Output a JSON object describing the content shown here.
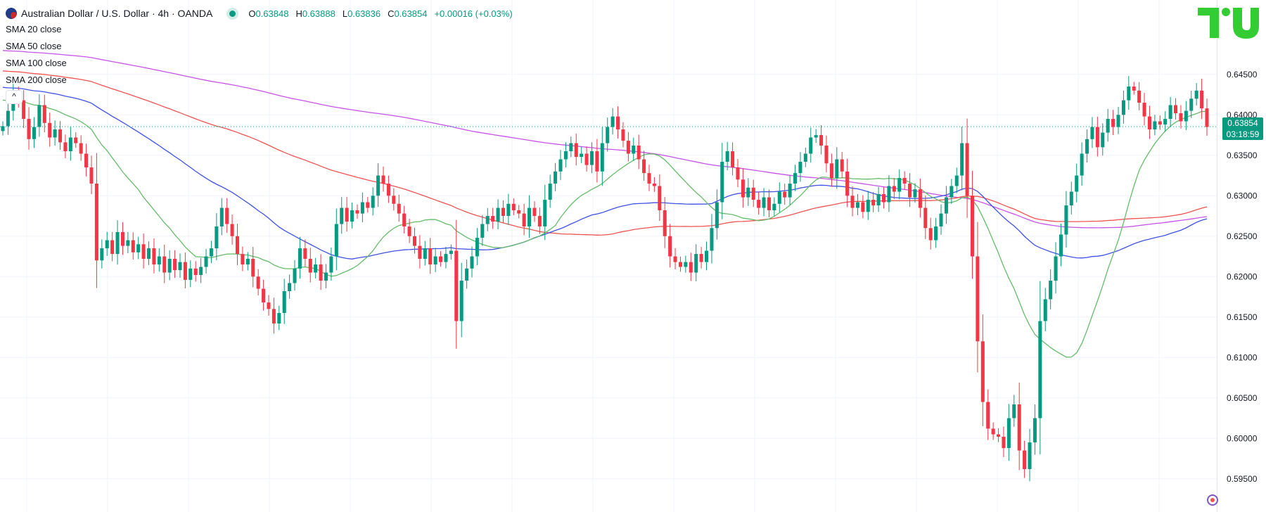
{
  "header": {
    "symbol_title": "Australian Dollar / U.S. Dollar · 4h · OANDA",
    "open_key": "O",
    "open_value": "0.63848",
    "high_key": "H",
    "high_value": "0.63888",
    "low_key": "L",
    "low_value": "0.63836",
    "close_key": "C",
    "close_value": "0.63854",
    "change": "+0.00016 (+0.03%)"
  },
  "legend": {
    "items": [
      "SMA 20 close",
      "SMA 50 close",
      "SMA 100 close",
      "SMA 200 close"
    ],
    "collapse_glyph": "^"
  },
  "price_tag": {
    "price": "0.63854",
    "countdown": "03:18:59"
  },
  "colors": {
    "up": "#089981",
    "down": "#f23645",
    "sma20": "#66bb6a",
    "sma50": "#3f51e6",
    "sma100": "#ef5350",
    "sma200": "#c653e8",
    "grid": "#f0f3fa",
    "logo": "#33cc33"
  },
  "chart_data": {
    "type": "candlestick",
    "timeframe": "4h",
    "ylim": [
      0.59,
      0.65
    ],
    "y_ticks": [
      "0.64500",
      "0.64000",
      "0.63500",
      "0.63000",
      "0.62500",
      "0.62000",
      "0.61500",
      "0.61000",
      "0.60500",
      "0.60000",
      "0.59500"
    ],
    "last_price": 0.63854,
    "grid": true,
    "closes": [
      0.6386,
      0.6405,
      0.6425,
      0.6418,
      0.6395,
      0.637,
      0.6385,
      0.6412,
      0.639,
      0.6372,
      0.6382,
      0.6366,
      0.6355,
      0.6372,
      0.6365,
      0.6352,
      0.6335,
      0.6315,
      0.622,
      0.6235,
      0.6245,
      0.6228,
      0.6255,
      0.6238,
      0.6245,
      0.623,
      0.624,
      0.6222,
      0.6235,
      0.6215,
      0.6225,
      0.6205,
      0.6222,
      0.6208,
      0.6218,
      0.6196,
      0.621,
      0.6202,
      0.6212,
      0.6225,
      0.6235,
      0.6262,
      0.6285,
      0.6265,
      0.625,
      0.6228,
      0.6215,
      0.6222,
      0.62,
      0.6185,
      0.6168,
      0.616,
      0.6142,
      0.6155,
      0.6182,
      0.6192,
      0.621,
      0.6235,
      0.6222,
      0.6205,
      0.6215,
      0.6195,
      0.6205,
      0.6225,
      0.6265,
      0.6285,
      0.6268,
      0.6282,
      0.6278,
      0.6292,
      0.6285,
      0.63,
      0.6325,
      0.6315,
      0.63,
      0.629,
      0.6278,
      0.6262,
      0.625,
      0.6238,
      0.6222,
      0.6235,
      0.6215,
      0.6225,
      0.6218,
      0.6228,
      0.6232,
      0.6145,
      0.6195,
      0.621,
      0.6225,
      0.6248,
      0.6265,
      0.6275,
      0.6268,
      0.6285,
      0.6275,
      0.629,
      0.6282,
      0.6278,
      0.6262,
      0.6285,
      0.6275,
      0.6262,
      0.6295,
      0.6315,
      0.633,
      0.6345,
      0.6355,
      0.6365,
      0.6348,
      0.6352,
      0.6338,
      0.6355,
      0.633,
      0.6365,
      0.6385,
      0.6398,
      0.6382,
      0.6368,
      0.6352,
      0.6362,
      0.6345,
      0.6328,
      0.6315,
      0.6312,
      0.6282,
      0.625,
      0.6225,
      0.6218,
      0.6212,
      0.6218,
      0.6205,
      0.6228,
      0.6218,
      0.6232,
      0.626,
      0.6292,
      0.6342,
      0.6355,
      0.6335,
      0.632,
      0.6298,
      0.631,
      0.6295,
      0.6285,
      0.6298,
      0.6282,
      0.629,
      0.6305,
      0.6298,
      0.6315,
      0.6328,
      0.6342,
      0.6352,
      0.6372,
      0.6375,
      0.6362,
      0.634,
      0.6322,
      0.6345,
      0.633,
      0.63,
      0.6285,
      0.6292,
      0.628,
      0.6295,
      0.6288,
      0.6302,
      0.6292,
      0.6312,
      0.6305,
      0.6322,
      0.6315,
      0.6298,
      0.6308,
      0.6285,
      0.626,
      0.6245,
      0.6262,
      0.6278,
      0.6298,
      0.6312,
      0.6325,
      0.6365,
      0.63,
      0.6225,
      0.612,
      0.6045,
      0.6012,
      0.6005,
      0.6002,
      0.5988,
      0.6025,
      0.6042,
      0.5985,
      0.5962,
      0.5995,
      0.6025,
      0.6145,
      0.6172,
      0.6195,
      0.6225,
      0.6252,
      0.6288,
      0.6305,
      0.6325,
      0.6352,
      0.637,
      0.6385,
      0.636,
      0.6378,
      0.6395,
      0.6385,
      0.64,
      0.6418,
      0.6435,
      0.643,
      0.6415,
      0.6398,
      0.6382,
      0.6392,
      0.6388,
      0.6395,
      0.6412,
      0.6402,
      0.6392,
      0.6405,
      0.642,
      0.643,
      0.6408,
      0.6385
    ]
  }
}
